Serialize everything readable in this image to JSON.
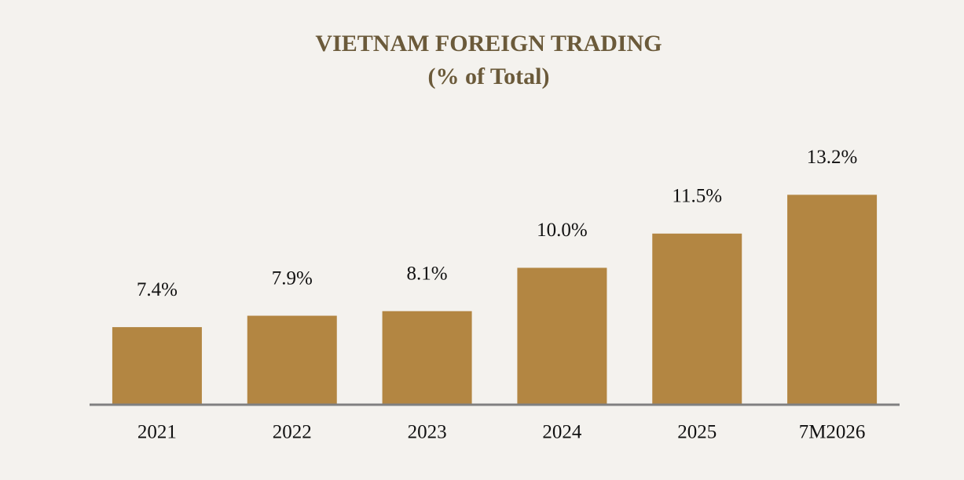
{
  "chart_data": {
    "type": "bar",
    "title": "VIETNAM FOREIGN TRADING",
    "subtitle": "(% of Total)",
    "categories": [
      "2021",
      "2022",
      "2023",
      "2024",
      "2025",
      "7M2026"
    ],
    "values": [
      7.4,
      7.9,
      8.1,
      10.0,
      11.5,
      13.2
    ],
    "value_labels": [
      "7.4%",
      "7.9%",
      "8.1%",
      "10.0%",
      "11.5%",
      "13.2%"
    ],
    "color": "#b38642",
    "ylim": [
      4,
      15
    ],
    "grid": false
  }
}
